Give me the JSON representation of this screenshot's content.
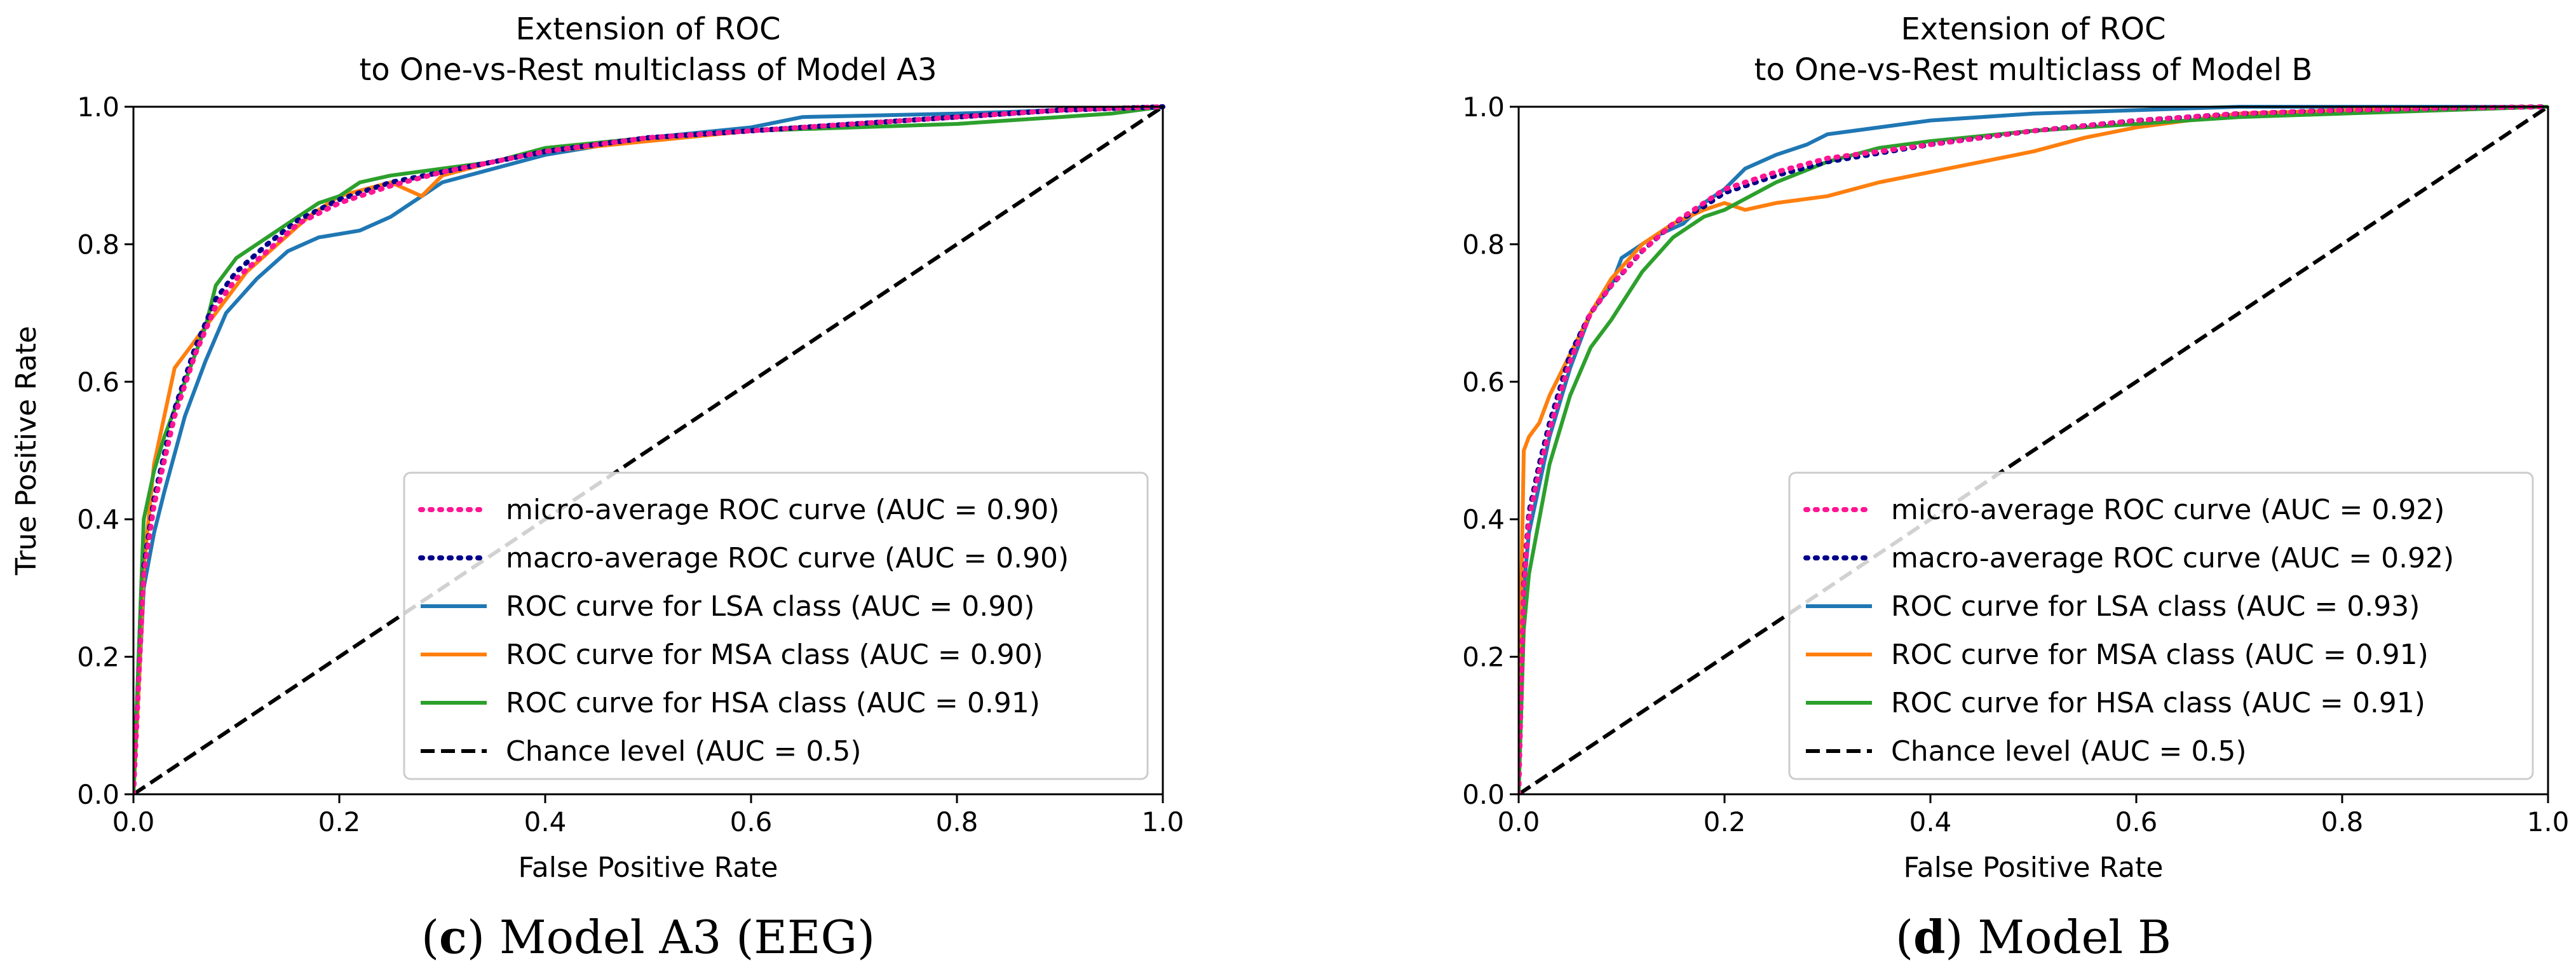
{
  "chart_data": [
    {
      "type": "line",
      "title": "Extension of ROC",
      "subtitle": "to One-vs-Rest multiclass of Model A3",
      "xlabel": "False Positive Rate",
      "ylabel": "True Positive Rate",
      "xlim": [
        0.0,
        1.0
      ],
      "ylim": [
        0.0,
        1.0
      ],
      "xticks": [
        "0.0",
        "0.2",
        "0.4",
        "0.6",
        "0.8",
        "1.0"
      ],
      "yticks": [
        "0.0",
        "0.2",
        "0.4",
        "0.6",
        "0.8",
        "1.0"
      ],
      "legend_position": "lower-right",
      "caption_letter": "c",
      "caption_text": " Model A3 (EEG)",
      "series": [
        {
          "name": "micro-average ROC curve (AUC = 0.90)",
          "color": "#ff1493",
          "style": "dotted",
          "x": [
            0,
            0.01,
            0.02,
            0.04,
            0.06,
            0.08,
            0.1,
            0.13,
            0.16,
            0.2,
            0.25,
            0.3,
            0.35,
            0.4,
            0.5,
            0.6,
            0.7,
            0.8,
            0.9,
            1.0
          ],
          "y": [
            0,
            0.32,
            0.42,
            0.55,
            0.64,
            0.71,
            0.75,
            0.79,
            0.83,
            0.86,
            0.885,
            0.905,
            0.92,
            0.935,
            0.955,
            0.965,
            0.975,
            0.985,
            0.995,
            1.0
          ]
        },
        {
          "name": "macro-average ROC curve (AUC = 0.90)",
          "color": "#00008b",
          "style": "dotted",
          "x": [
            0,
            0.01,
            0.02,
            0.04,
            0.06,
            0.08,
            0.1,
            0.13,
            0.16,
            0.2,
            0.25,
            0.3,
            0.35,
            0.4,
            0.5,
            0.6,
            0.7,
            0.8,
            0.9,
            1.0
          ],
          "y": [
            0,
            0.33,
            0.43,
            0.56,
            0.65,
            0.72,
            0.76,
            0.8,
            0.835,
            0.865,
            0.89,
            0.905,
            0.92,
            0.935,
            0.955,
            0.965,
            0.975,
            0.985,
            0.995,
            1.0
          ]
        },
        {
          "name": "ROC curve for LSA class (AUC = 0.90)",
          "color": "#1f77b4",
          "style": "solid",
          "x": [
            0,
            0.01,
            0.02,
            0.03,
            0.05,
            0.07,
            0.09,
            0.12,
            0.15,
            0.18,
            0.22,
            0.25,
            0.28,
            0.3,
            0.35,
            0.4,
            0.5,
            0.6,
            0.65,
            0.8,
            0.9,
            1.0
          ],
          "y": [
            0,
            0.3,
            0.38,
            0.44,
            0.55,
            0.63,
            0.7,
            0.75,
            0.79,
            0.81,
            0.82,
            0.84,
            0.87,
            0.89,
            0.91,
            0.93,
            0.955,
            0.97,
            0.985,
            0.99,
            0.995,
            1.0
          ]
        },
        {
          "name": "ROC curve for MSA class (AUC = 0.90)",
          "color": "#ff7f0e",
          "style": "solid",
          "x": [
            0,
            0.005,
            0.01,
            0.02,
            0.03,
            0.04,
            0.05,
            0.06,
            0.07,
            0.09,
            0.11,
            0.14,
            0.17,
            0.2,
            0.25,
            0.28,
            0.3,
            0.35,
            0.4,
            0.5,
            0.6,
            0.7,
            0.8,
            0.9,
            1.0
          ],
          "y": [
            0,
            0.15,
            0.33,
            0.48,
            0.55,
            0.62,
            0.64,
            0.66,
            0.68,
            0.72,
            0.76,
            0.8,
            0.84,
            0.87,
            0.89,
            0.87,
            0.9,
            0.92,
            0.935,
            0.95,
            0.965,
            0.975,
            0.985,
            0.995,
            1.0
          ]
        },
        {
          "name": "ROC curve for HSA class (AUC = 0.91)",
          "color": "#2ca02c",
          "style": "solid",
          "x": [
            0,
            0.01,
            0.02,
            0.03,
            0.05,
            0.07,
            0.08,
            0.1,
            0.12,
            0.15,
            0.18,
            0.2,
            0.22,
            0.25,
            0.3,
            0.35,
            0.4,
            0.5,
            0.6,
            0.7,
            0.8,
            0.9,
            0.95,
            1.0
          ],
          "y": [
            0,
            0.4,
            0.47,
            0.52,
            0.6,
            0.68,
            0.74,
            0.78,
            0.8,
            0.83,
            0.86,
            0.87,
            0.89,
            0.9,
            0.91,
            0.92,
            0.94,
            0.955,
            0.965,
            0.97,
            0.975,
            0.985,
            0.99,
            1.0
          ]
        },
        {
          "name": "Chance level (AUC = 0.5)",
          "color": "#000000",
          "style": "dashed",
          "x": [
            0,
            1
          ],
          "y": [
            0,
            1
          ]
        }
      ]
    },
    {
      "type": "line",
      "title": "Extension of ROC",
      "subtitle": "to One-vs-Rest multiclass of Model B",
      "xlabel": "False Positive Rate",
      "ylabel": "True Positive Rate",
      "xlim": [
        0.0,
        1.0
      ],
      "ylim": [
        0.0,
        1.0
      ],
      "xticks": [
        "0.0",
        "0.2",
        "0.4",
        "0.6",
        "0.8",
        "1.0"
      ],
      "yticks": [
        "0.0",
        "0.2",
        "0.4",
        "0.6",
        "0.8",
        "1.0"
      ],
      "legend_position": "lower-right",
      "caption_letter": "d",
      "caption_text": " Model B",
      "series": [
        {
          "name": "micro-average ROC curve (AUC = 0.92)",
          "color": "#ff1493",
          "style": "dotted",
          "x": [
            0,
            0.005,
            0.01,
            0.02,
            0.03,
            0.05,
            0.07,
            0.09,
            0.12,
            0.15,
            0.18,
            0.2,
            0.25,
            0.3,
            0.4,
            0.5,
            0.6,
            0.7,
            0.8,
            0.9,
            1.0
          ],
          "y": [
            0,
            0.3,
            0.4,
            0.47,
            0.53,
            0.63,
            0.7,
            0.74,
            0.79,
            0.83,
            0.86,
            0.88,
            0.905,
            0.925,
            0.945,
            0.965,
            0.98,
            0.99,
            0.995,
            0.998,
            1.0
          ]
        },
        {
          "name": "macro-average ROC curve (AUC = 0.92)",
          "color": "#00008b",
          "style": "dotted",
          "x": [
            0,
            0.005,
            0.01,
            0.02,
            0.03,
            0.05,
            0.07,
            0.09,
            0.12,
            0.15,
            0.18,
            0.2,
            0.25,
            0.3,
            0.4,
            0.5,
            0.6,
            0.7,
            0.8,
            0.9,
            1.0
          ],
          "y": [
            0,
            0.31,
            0.41,
            0.48,
            0.54,
            0.64,
            0.7,
            0.74,
            0.79,
            0.83,
            0.855,
            0.875,
            0.9,
            0.92,
            0.945,
            0.965,
            0.98,
            0.99,
            0.995,
            0.998,
            1.0
          ]
        },
        {
          "name": "ROC curve for LSA class (AUC = 0.93)",
          "color": "#1f77b4",
          "style": "solid",
          "x": [
            0,
            0.005,
            0.01,
            0.02,
            0.03,
            0.05,
            0.07,
            0.09,
            0.1,
            0.13,
            0.16,
            0.18,
            0.2,
            0.22,
            0.25,
            0.28,
            0.3,
            0.35,
            0.4,
            0.5,
            0.6,
            0.7,
            1.0
          ],
          "y": [
            0,
            0.3,
            0.38,
            0.45,
            0.52,
            0.62,
            0.7,
            0.74,
            0.78,
            0.81,
            0.83,
            0.86,
            0.88,
            0.91,
            0.93,
            0.945,
            0.96,
            0.97,
            0.98,
            0.99,
            0.995,
            1.0,
            1.0
          ]
        },
        {
          "name": "ROC curve for MSA class (AUC = 0.91)",
          "color": "#ff7f0e",
          "style": "solid",
          "x": [
            0,
            0.002,
            0.005,
            0.01,
            0.02,
            0.03,
            0.05,
            0.07,
            0.09,
            0.12,
            0.15,
            0.18,
            0.2,
            0.22,
            0.25,
            0.3,
            0.35,
            0.4,
            0.45,
            0.5,
            0.55,
            0.6,
            0.65,
            0.7,
            0.8,
            0.9,
            1.0
          ],
          "y": [
            0,
            0.25,
            0.5,
            0.52,
            0.54,
            0.58,
            0.64,
            0.7,
            0.75,
            0.8,
            0.83,
            0.85,
            0.86,
            0.85,
            0.86,
            0.87,
            0.89,
            0.905,
            0.92,
            0.935,
            0.955,
            0.97,
            0.98,
            0.99,
            0.995,
            0.998,
            1.0
          ]
        },
        {
          "name": "ROC curve for HSA class (AUC = 0.91)",
          "color": "#2ca02c",
          "style": "solid",
          "x": [
            0,
            0.005,
            0.01,
            0.02,
            0.03,
            0.05,
            0.07,
            0.09,
            0.12,
            0.15,
            0.18,
            0.2,
            0.25,
            0.3,
            0.35,
            0.4,
            0.5,
            0.6,
            0.7,
            0.8,
            0.9,
            1.0
          ],
          "y": [
            0,
            0.24,
            0.32,
            0.4,
            0.48,
            0.58,
            0.65,
            0.69,
            0.76,
            0.81,
            0.84,
            0.85,
            0.89,
            0.92,
            0.94,
            0.95,
            0.965,
            0.975,
            0.985,
            0.99,
            0.995,
            1.0
          ]
        },
        {
          "name": "Chance level (AUC = 0.5)",
          "color": "#000000",
          "style": "dashed",
          "x": [
            0,
            1
          ],
          "y": [
            0,
            1
          ]
        }
      ]
    }
  ]
}
